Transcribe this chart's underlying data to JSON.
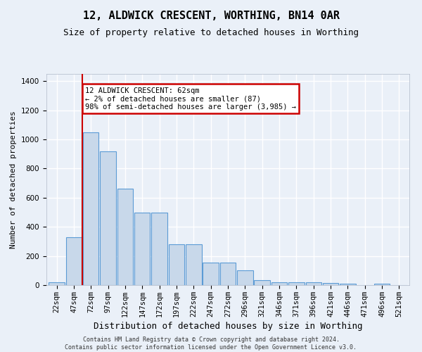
{
  "title": "12, ALDWICK CRESCENT, WORTHING, BN14 0AR",
  "subtitle": "Size of property relative to detached houses in Worthing",
  "xlabel": "Distribution of detached houses by size in Worthing",
  "ylabel": "Number of detached properties",
  "bar_color": "#c8d8ea",
  "bar_edge_color": "#5b9bd5",
  "annotation_box_color": "#cc0000",
  "vline_color": "#cc0000",
  "vline_x": 1.5,
  "annotation_text": "12 ALDWICK CRESCENT: 62sqm\n← 2% of detached houses are smaller (87)\n98% of semi-detached houses are larger (3,985) →",
  "footer_text": "Contains HM Land Registry data © Crown copyright and database right 2024.\nContains public sector information licensed under the Open Government Licence v3.0.",
  "categories": [
    "22sqm",
    "47sqm",
    "72sqm",
    "97sqm",
    "122sqm",
    "147sqm",
    "172sqm",
    "197sqm",
    "222sqm",
    "247sqm",
    "272sqm",
    "296sqm",
    "321sqm",
    "346sqm",
    "371sqm",
    "396sqm",
    "421sqm",
    "446sqm",
    "471sqm",
    "496sqm",
    "521sqm"
  ],
  "values": [
    20,
    330,
    1050,
    920,
    660,
    500,
    500,
    280,
    280,
    155,
    155,
    100,
    35,
    20,
    20,
    20,
    15,
    10,
    0,
    8,
    0
  ],
  "ylim": [
    0,
    1450
  ],
  "yticks": [
    0,
    200,
    400,
    600,
    800,
    1000,
    1200,
    1400
  ],
  "background_color": "#eaf0f8",
  "plot_background": "#eaf0f8",
  "grid_color": "#ffffff",
  "title_fontsize": 11,
  "subtitle_fontsize": 9,
  "tick_fontsize": 7.5,
  "ylabel_fontsize": 8,
  "xlabel_fontsize": 9,
  "footer_fontsize": 6
}
